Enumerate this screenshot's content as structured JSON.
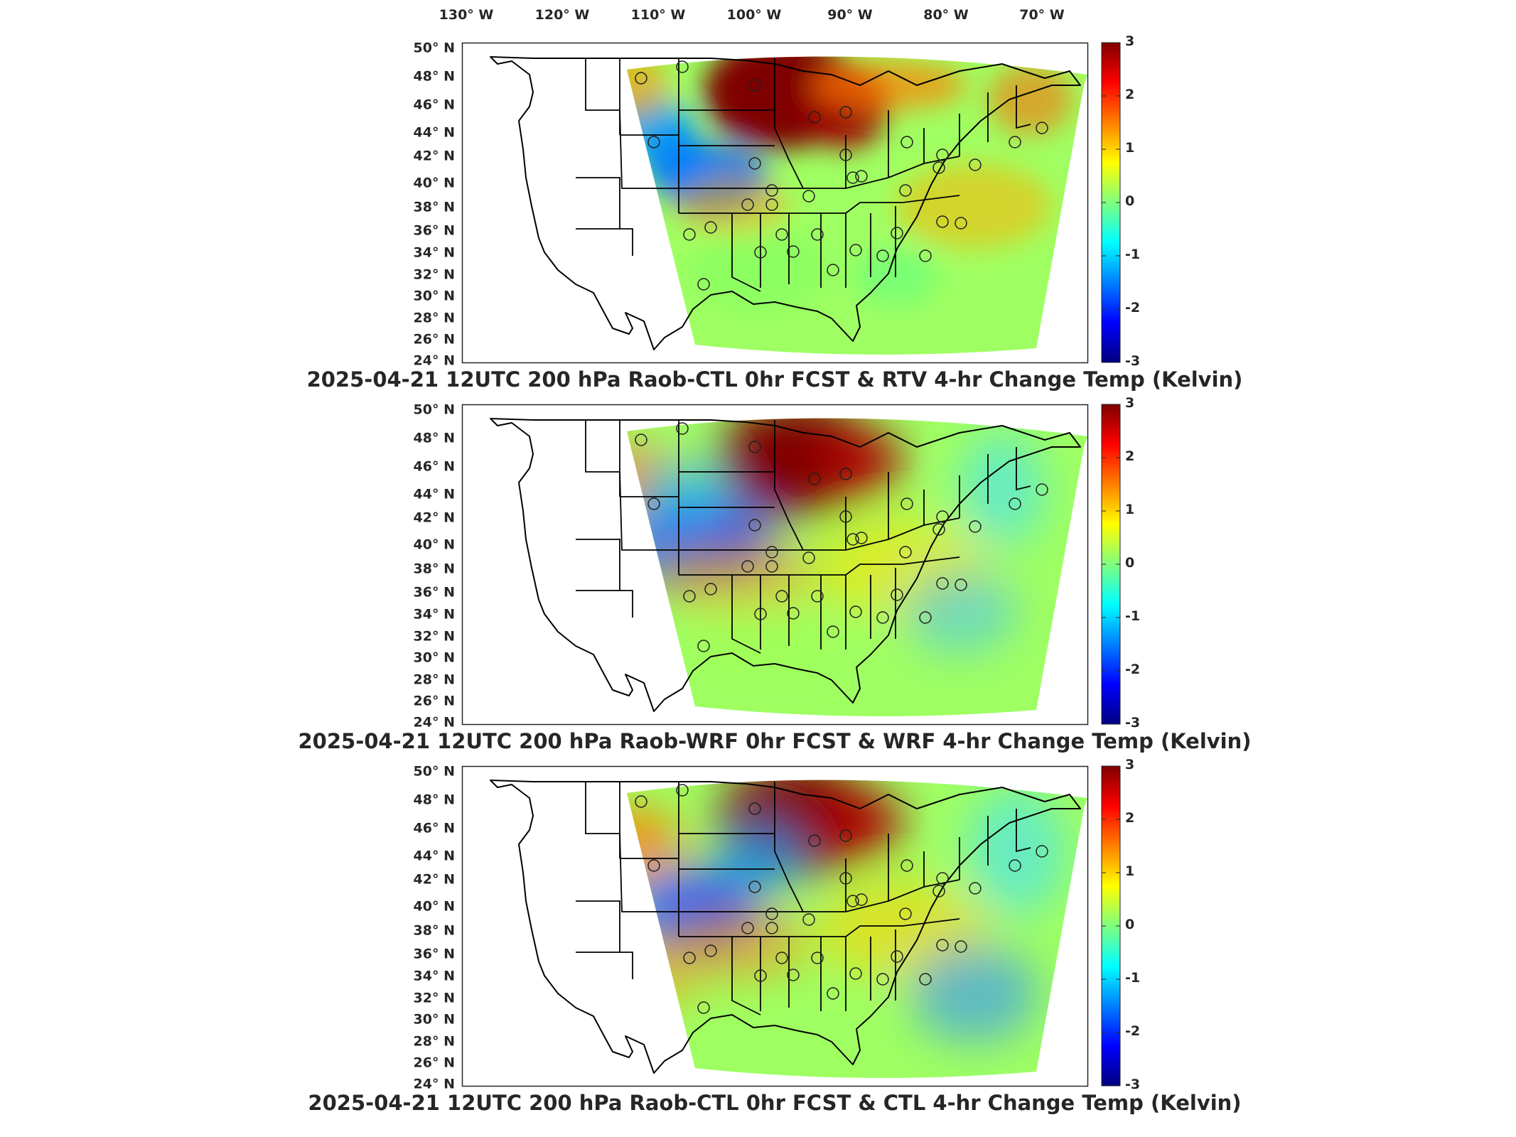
{
  "figure": {
    "longitude_labels": [
      "130° W",
      "120° W",
      "110° W",
      "100° W",
      "90° W",
      "80° W",
      "70° W"
    ],
    "latitude_labels": [
      "50° N",
      "48° N",
      "46° N",
      "44° N",
      "42° N",
      "40° N",
      "38° N",
      "36° N",
      "34° N",
      "32° N",
      "30° N",
      "28° N",
      "26° N",
      "24° N"
    ],
    "colorbar": {
      "min": -3,
      "max": 3,
      "ticks": [
        "3",
        "2",
        "1",
        "0",
        "-1",
        "-2",
        "-3"
      ],
      "colormap": "jet"
    },
    "panels": [
      {
        "title": "2025-04-21 12UTC 200 hPa Raob-CTL 0hr FCST & RTV 4-hr Change Temp (Kelvin)"
      },
      {
        "title": "2025-04-21 12UTC 200 hPa Raob-WRF 0hr FCST & WRF 4-hr Change Temp (Kelvin)"
      },
      {
        "title": "2025-04-21 12UTC 200 hPa Raob-CTL 0hr FCST & CTL 4-hr Change Temp (Kelvin)"
      }
    ]
  },
  "colors": {
    "jet": [
      "#00007f",
      "#0000ff",
      "#007fff",
      "#00ffff",
      "#7fff7f",
      "#ffff00",
      "#ff7f00",
      "#ff0000",
      "#7f0000"
    ],
    "land_outline": "#000000",
    "frame": "#262626"
  }
}
